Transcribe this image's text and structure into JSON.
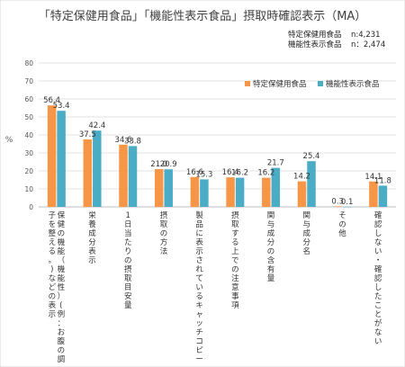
{
  "chart_data": {
    "type": "bar",
    "title": "「特定保健用食品」「機能性表示食品」摂取時確認表示（MA）",
    "ylabel": "%",
    "ylim": [
      0,
      80
    ],
    "yticks": [
      0,
      10,
      20,
      30,
      40,
      50,
      60,
      70,
      80
    ],
    "grid": true,
    "legend_position": "top-right",
    "sample_sizes": [
      {
        "name": "特定保健用食品",
        "n": "n:4,231"
      },
      {
        "name": "機能性表示食品",
        "n": "n：2,474"
      }
    ],
    "categories": [
      "保健の機能（機能性）(例：お腹の調子を整える。)などの表示",
      "栄養成分表示",
      "1日当たりの摂取目安量",
      "摂取の方法",
      "製品に表示されているキャッチコピー",
      "摂取する上での注意事項",
      "関与成分の含有量",
      "関与成分名",
      "その他",
      "確認しない・確認したことがない"
    ],
    "series": [
      {
        "name": "特定保健用食品",
        "color": "#F79646",
        "values": [
          56.4,
          37.5,
          34.6,
          21.0,
          16.6,
          16.4,
          16.2,
          14.2,
          0.3,
          14.1
        ]
      },
      {
        "name": "機能性表示食品",
        "color": "#4BACC6",
        "values": [
          53.4,
          42.4,
          33.8,
          20.9,
          15.3,
          16.2,
          21.7,
          25.4,
          0.1,
          11.8
        ]
      }
    ],
    "data_labels": [
      [
        "56.4",
        "37.5",
        "34.6",
        "21.0",
        "16.6",
        "16.4",
        "16.2",
        "14.2",
        "0.3",
        "14.1"
      ],
      [
        "53.4",
        "42.4",
        "33.8",
        "20.9",
        "15.3",
        "16.2",
        "21.7",
        "25.4",
        "0.1",
        "11.8"
      ]
    ]
  }
}
